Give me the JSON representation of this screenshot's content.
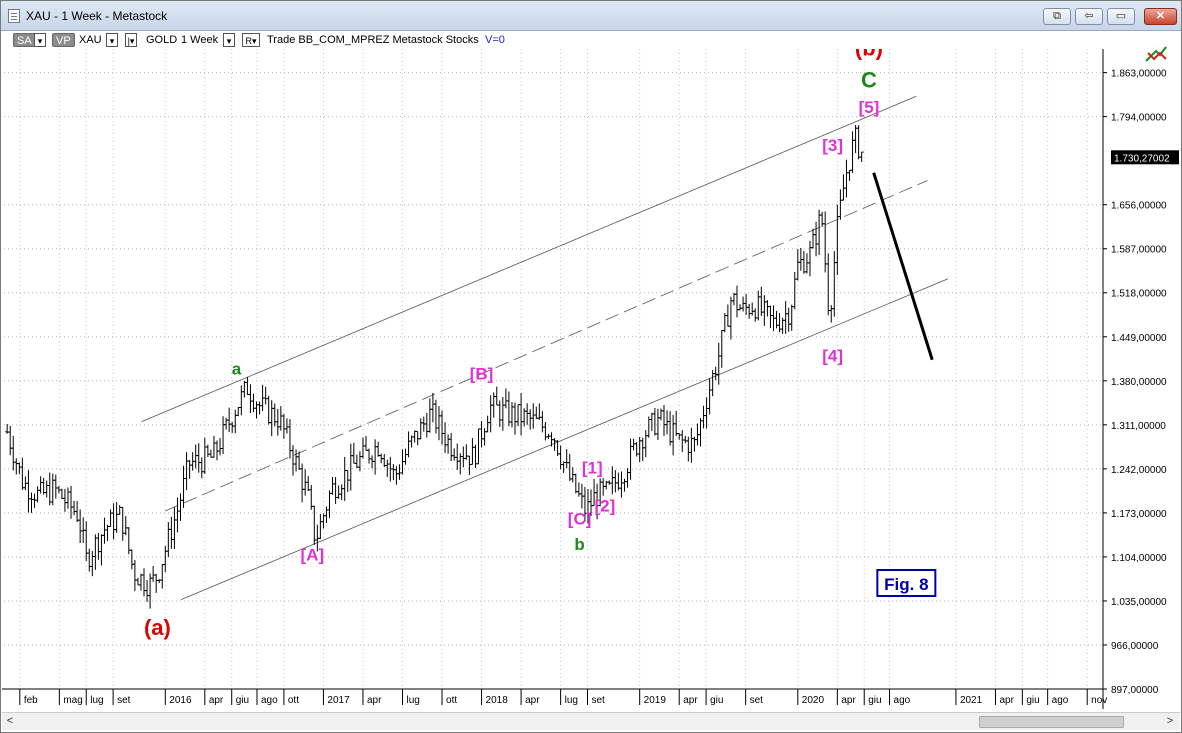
{
  "window": {
    "title": "XAU - 1 Week - Metastock"
  },
  "window_buttons": {
    "restore_label": "⧉",
    "nav_label": "⇦",
    "minimize_label": "▭",
    "close_label": "✕"
  },
  "toolbar": {
    "sa_label": "SA",
    "sa_dropdown": "▾",
    "vp_label": "VP",
    "symbol": "XAU",
    "dd1": "▾",
    "dd2": "|▾",
    "security_name": "GOLD",
    "period": "1 Week",
    "dd3": "▾",
    "r_label": "R▾",
    "indicator_text": "Trade  BB_COM_MPREZ  Metastock  Stocks",
    "volume_text": "V=0"
  },
  "icons": {
    "trade": "trade-arrows-icon"
  },
  "scrollbar": {
    "left_arrow": "<",
    "right_arrow": ">"
  },
  "chart_data": {
    "type": "line",
    "instrument": "XAU",
    "periodicity": "1 Week",
    "y_axis": {
      "ticks": [
        "1.863,00000",
        "1.794,00000",
        "1.656,00000",
        "1.587,00000",
        "1.518,00000",
        "1.449,00000",
        "1.380,00000",
        "1.311,00000",
        "1.242,00000",
        "1.173,00000",
        "1.104,00000",
        "1.035,00000",
        "966,00000",
        "897,00000"
      ],
      "tick_values": [
        1863,
        1794,
        1656,
        1587,
        1518,
        1449,
        1380,
        1311,
        1242,
        1173,
        1104,
        1035,
        966,
        897
      ],
      "ylim": [
        897,
        1900
      ],
      "last_price_label": "1.730,27002",
      "last_price": 1730.27
    },
    "x_axis": {
      "labels": [
        "feb",
        "mag",
        "lug",
        "set",
        "2016",
        "apr",
        "giu",
        "ago",
        "ott",
        "2017",
        "apr",
        "lug",
        "ott",
        "2018",
        "apr",
        "lug",
        "set",
        "2019",
        "apr",
        "giu",
        "set",
        "2020",
        "apr",
        "giu",
        "ago",
        "2021",
        "apr",
        "giu",
        "ago",
        "nov"
      ],
      "label_dates": [
        2015.08,
        2015.33,
        2015.5,
        2015.67,
        2016.0,
        2016.25,
        2016.42,
        2016.58,
        2016.75,
        2017.0,
        2017.25,
        2017.5,
        2017.75,
        2018.0,
        2018.25,
        2018.5,
        2018.67,
        2019.0,
        2019.25,
        2019.42,
        2019.67,
        2020.0,
        2020.25,
        2020.42,
        2020.58,
        2021.0,
        2021.25,
        2021.42,
        2021.58,
        2021.83
      ]
    },
    "price_path": [
      [
        2015.0,
        1300
      ],
      [
        2015.1,
        1220
      ],
      [
        2015.2,
        1200
      ],
      [
        2015.3,
        1210
      ],
      [
        2015.45,
        1170
      ],
      [
        2015.5,
        1100
      ],
      [
        2015.62,
        1150
      ],
      [
        2015.72,
        1170
      ],
      [
        2015.8,
        1080
      ],
      [
        2015.9,
        1060
      ],
      [
        2015.95,
        1075
      ],
      [
        2016.08,
        1180
      ],
      [
        2016.15,
        1250
      ],
      [
        2016.3,
        1260
      ],
      [
        2016.45,
        1340
      ],
      [
        2016.52,
        1370
      ],
      [
        2016.6,
        1340
      ],
      [
        2016.72,
        1320
      ],
      [
        2016.8,
        1270
      ],
      [
        2016.9,
        1200
      ],
      [
        2016.95,
        1130
      ],
      [
        2017.05,
        1210
      ],
      [
        2017.2,
        1250
      ],
      [
        2017.35,
        1280
      ],
      [
        2017.45,
        1230
      ],
      [
        2017.55,
        1280
      ],
      [
        2017.68,
        1330
      ],
      [
        2017.8,
        1280
      ],
      [
        2017.95,
        1260
      ],
      [
        2018.05,
        1340
      ],
      [
        2018.15,
        1330
      ],
      [
        2018.3,
        1320
      ],
      [
        2018.45,
        1300
      ],
      [
        2018.55,
        1230
      ],
      [
        2018.62,
        1195
      ],
      [
        2018.66,
        1175
      ],
      [
        2018.72,
        1200
      ],
      [
        2018.8,
        1205
      ],
      [
        2018.9,
        1240
      ],
      [
        2019.0,
        1290
      ],
      [
        2019.12,
        1320
      ],
      [
        2019.25,
        1285
      ],
      [
        2019.35,
        1280
      ],
      [
        2019.42,
        1350
      ],
      [
        2019.5,
        1420
      ],
      [
        2019.58,
        1510
      ],
      [
        2019.65,
        1490
      ],
      [
        2019.72,
        1500
      ],
      [
        2019.85,
        1470
      ],
      [
        2019.95,
        1490
      ],
      [
        2020.0,
        1560
      ],
      [
        2020.08,
        1580
      ],
      [
        2020.15,
        1640
      ],
      [
        2020.2,
        1480
      ],
      [
        2020.25,
        1620
      ],
      [
        2020.3,
        1700
      ],
      [
        2020.36,
        1760
      ],
      [
        2020.42,
        1730
      ]
    ],
    "channel_lines": [
      {
        "name": "upper",
        "style": "solid",
        "points": [
          [
            2015.85,
            1316
          ],
          [
            2020.75,
            1826
          ]
        ]
      },
      {
        "name": "middle",
        "style": "dashed",
        "points": [
          [
            2016.0,
            1176
          ],
          [
            2020.82,
            1694
          ]
        ]
      },
      {
        "name": "lower",
        "style": "solid",
        "points": [
          [
            2016.1,
            1037
          ],
          [
            2020.95,
            1540
          ]
        ]
      }
    ],
    "projection_line": {
      "points": [
        [
          2020.48,
          1706
        ],
        [
          2020.85,
          1413
        ]
      ]
    },
    "annotations": [
      {
        "text": "(b)",
        "color": "#e00000",
        "x": 2020.45,
        "y": 1890,
        "size": "large"
      },
      {
        "text": "C",
        "color": "#1e8a1e",
        "x": 2020.45,
        "y": 1840,
        "size": "large"
      },
      {
        "text": "[5]",
        "color": "#e030d8",
        "x": 2020.45,
        "y": 1800,
        "size": "medium"
      },
      {
        "text": "[3]",
        "color": "#e030d8",
        "x": 2020.22,
        "y": 1740,
        "size": "medium"
      },
      {
        "text": "[4]",
        "color": "#e030d8",
        "x": 2020.22,
        "y": 1410,
        "size": "medium"
      },
      {
        "text": "a",
        "color": "#1e8a1e",
        "x": 2016.45,
        "y": 1390,
        "size": "medium"
      },
      {
        "text": "[B]",
        "color": "#e030d8",
        "x": 2018.0,
        "y": 1382,
        "size": "medium"
      },
      {
        "text": "[1]",
        "color": "#e030d8",
        "x": 2018.7,
        "y": 1235,
        "size": "medium"
      },
      {
        "text": "[2]",
        "color": "#e030d8",
        "x": 2018.78,
        "y": 1175,
        "size": "medium"
      },
      {
        "text": "[C]",
        "color": "#e030d8",
        "x": 2018.62,
        "y": 1155,
        "size": "medium"
      },
      {
        "text": "b",
        "color": "#1e8a1e",
        "x": 2018.62,
        "y": 1115,
        "size": "medium"
      },
      {
        "text": "[A]",
        "color": "#e030d8",
        "x": 2016.93,
        "y": 1098,
        "size": "medium"
      },
      {
        "text": "(a)",
        "color": "#e00000",
        "x": 2015.95,
        "y": 982,
        "size": "large"
      }
    ],
    "figure_label": "Fig. 8",
    "title": "",
    "xlabel": "",
    "ylabel": ""
  }
}
